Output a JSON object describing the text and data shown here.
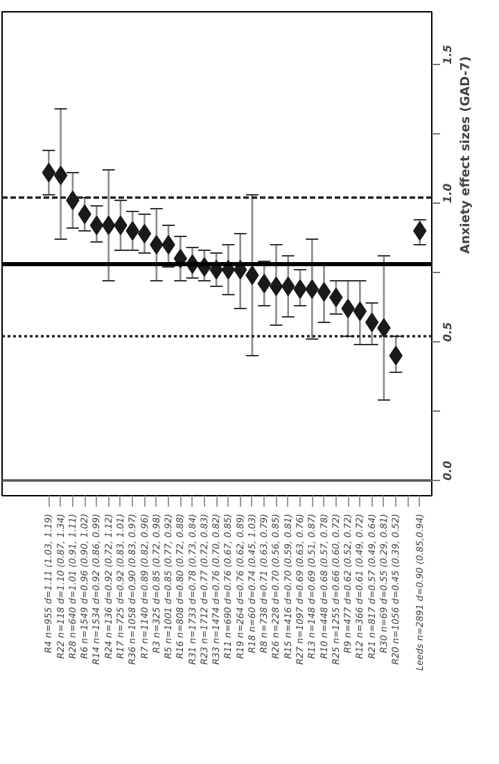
{
  "chart_data": {
    "type": "scatter",
    "ylabel": "Anxiety effect sizes (GAD-7)",
    "categories": [
      "R4 n=955 d=1.11 (1.03, 1.19)",
      "R22 n=118 d=1.10 (0.87, 1.34)",
      "R28 n=640 d=1.01 (0.91, 1.11)",
      "R6 n=1549 d=0.96 (0.90, 1.02)",
      "R14 n=1534 d=0.92 (0.86, 0.99)",
      "R24 n=136 d=0.92 (0.72, 1.12)",
      "R17 n=725 d=0.92 (0.83, 1.01)",
      "R36 n=1058 d=0.90 (0.83, 0.97)",
      "R7 n=1140 d=0.89 (0.82, 0.96)",
      "R3 n=325 d=0.85 (0.72, 0.98)",
      "R5 n=1001 d=0.85 (0.77, 0.92)",
      "R16 n=808 d=0.80 (0.72, 0.88)",
      "R31 n=1733 d=0.78 (0.73, 0.84)",
      "R23 n=1712 d=0.77 (0.72, 0.83)",
      "R33 n=1474 d=0.76 (0.70, 0.82)",
      "R11 n=690 d=0.76 (0.67, 0.85)",
      "R19 n=264 d=0.76 (0.62, 0.89)",
      "R18 n=60 d=0.74 (0.45, 1.03)",
      "R8 n=738 d=0.71 (0.63, 0.79)",
      "R26 n=228 d=0.70 (0.56, 0.85)",
      "R15 n=416 d=0.70 (0.59, 0.81)",
      "R27 n=1097 d=0.69 (0.63, 0.76)",
      "R13 n=148 d=0.69 (0.51, 0.87)",
      "R10 n=448 d=0.68 (0.57, 0.78)",
      "R25 n=1255 d=0.66 (0.60, 0.72)",
      "R9 n=477 d=0.62 (0.52, 0.72)",
      "R12 n=366 d=0.61 (0.49, 0.72)",
      "R21 n=817 d=0.57 (0.49, 0.64)",
      "R30 n=69 d=0.55 (0.29, 0.81)",
      "R20 n=1056 d=0.45 (0.39, 0.52)",
      null,
      "Leeds n=2891 d=0.90 (0.85,0.94)"
    ],
    "series": [
      {
        "color": "#1a1a1a",
        "values": [
          1.11,
          1.1,
          1.01,
          0.96,
          0.92,
          0.92,
          0.92,
          0.9,
          0.89,
          0.85,
          0.85,
          0.8,
          0.78,
          0.77,
          0.76,
          0.76,
          0.76,
          0.74,
          0.71,
          0.7,
          0.7,
          0.69,
          0.69,
          0.68,
          0.66,
          0.62,
          0.61,
          0.57,
          0.55,
          0.45,
          null,
          0.9
        ],
        "errors": [
          [
            1.03,
            1.19
          ],
          [
            0.87,
            1.34
          ],
          [
            0.91,
            1.11
          ],
          [
            0.9,
            1.02
          ],
          [
            0.86,
            0.99
          ],
          [
            0.72,
            1.12
          ],
          [
            0.83,
            1.01
          ],
          [
            0.83,
            0.97
          ],
          [
            0.82,
            0.96
          ],
          [
            0.72,
            0.98
          ],
          [
            0.77,
            0.92
          ],
          [
            0.72,
            0.88
          ],
          [
            0.73,
            0.84
          ],
          [
            0.72,
            0.83
          ],
          [
            0.7,
            0.82
          ],
          [
            0.67,
            0.85
          ],
          [
            0.62,
            0.89
          ],
          [
            0.45,
            1.03
          ],
          [
            0.63,
            0.79
          ],
          [
            0.56,
            0.85
          ],
          [
            0.59,
            0.81
          ],
          [
            0.63,
            0.76
          ],
          [
            0.51,
            0.87
          ],
          [
            0.57,
            0.78
          ],
          [
            0.6,
            0.72
          ],
          [
            0.52,
            0.72
          ],
          [
            0.49,
            0.72
          ],
          [
            0.49,
            0.64
          ],
          [
            0.29,
            0.81
          ],
          [
            0.39,
            0.52
          ],
          null,
          [
            0.85,
            0.94
          ]
        ]
      }
    ],
    "marker": "diamond",
    "ylim": [
      -0.055,
      1.69
    ],
    "yticks": [
      {
        "value": 0,
        "label": "0.0"
      },
      {
        "value": 0.25,
        "label": null
      },
      0.5,
      {
        "value": 0.75,
        "label": null
      },
      {
        "value": 1,
        "label": "1.0"
      },
      {
        "value": 1.25,
        "label": null
      },
      1.5
    ],
    "ref_lines": [
      {
        "axis": "y",
        "value": 0,
        "color": "#555555",
        "line_style": "solid"
      },
      {
        "axis": "y",
        "value": 0.78,
        "color": "#000000",
        "line_style": "solid"
      },
      {
        "axis": "y",
        "value": 1.02,
        "color": "#222222",
        "line_style": "dashed"
      },
      {
        "axis": "y",
        "value": 0.52,
        "color": "#222222",
        "line_style": "dotted"
      }
    ],
    "grid": false
  }
}
